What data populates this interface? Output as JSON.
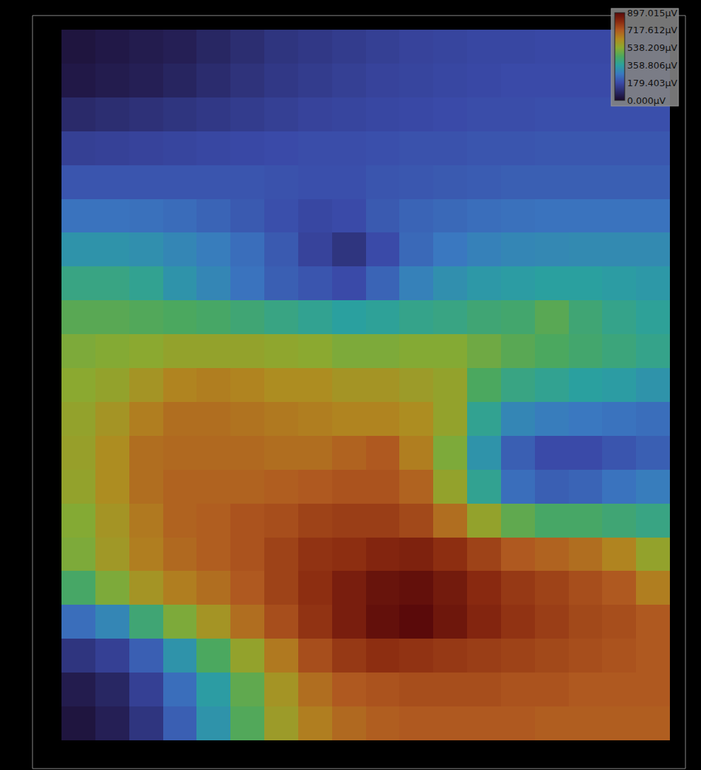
{
  "chart_data": {
    "type": "heatmap",
    "tick_labels": false,
    "cells": [
      [
        30,
        40,
        50,
        60,
        80,
        100,
        120,
        130,
        140,
        150,
        160,
        165,
        170,
        170,
        175,
        175,
        175,
        175
      ],
      [
        40,
        50,
        60,
        75,
        95,
        115,
        130,
        140,
        150,
        160,
        165,
        170,
        175,
        180,
        180,
        180,
        180,
        180
      ],
      [
        90,
        100,
        110,
        120,
        130,
        140,
        150,
        160,
        165,
        170,
        175,
        180,
        185,
        185,
        190,
        190,
        190,
        190
      ],
      [
        150,
        155,
        160,
        165,
        170,
        175,
        180,
        185,
        185,
        190,
        195,
        195,
        200,
        200,
        205,
        205,
        205,
        205
      ],
      [
        200,
        200,
        200,
        200,
        200,
        200,
        195,
        190,
        190,
        200,
        205,
        210,
        215,
        220,
        220,
        220,
        220,
        220
      ],
      [
        260,
        260,
        255,
        245,
        230,
        210,
        190,
        170,
        180,
        210,
        230,
        240,
        250,
        255,
        260,
        260,
        260,
        260
      ],
      [
        330,
        330,
        320,
        300,
        280,
        250,
        210,
        160,
        120,
        180,
        240,
        270,
        290,
        300,
        305,
        310,
        310,
        310
      ],
      [
        400,
        400,
        380,
        330,
        300,
        260,
        220,
        200,
        180,
        230,
        290,
        320,
        340,
        350,
        360,
        360,
        350,
        340
      ],
      [
        470,
        470,
        460,
        450,
        440,
        420,
        400,
        380,
        360,
        370,
        390,
        400,
        420,
        430,
        470,
        420,
        390,
        370
      ],
      [
        520,
        530,
        540,
        560,
        560,
        560,
        550,
        540,
        520,
        520,
        530,
        530,
        500,
        470,
        450,
        430,
        410,
        390
      ],
      [
        540,
        560,
        600,
        640,
        650,
        640,
        620,
        620,
        600,
        600,
        580,
        560,
        450,
        400,
        380,
        360,
        350,
        330
      ],
      [
        560,
        600,
        650,
        680,
        680,
        670,
        660,
        650,
        640,
        640,
        620,
        560,
        380,
        300,
        280,
        270,
        260,
        250
      ],
      [
        570,
        620,
        680,
        690,
        690,
        690,
        680,
        680,
        700,
        720,
        650,
        520,
        330,
        220,
        180,
        180,
        200,
        220
      ],
      [
        560,
        620,
        680,
        700,
        700,
        700,
        710,
        720,
        730,
        730,
        700,
        560,
        380,
        250,
        220,
        230,
        260,
        280
      ],
      [
        530,
        600,
        660,
        700,
        710,
        730,
        740,
        760,
        770,
        770,
        750,
        680,
        560,
        480,
        440,
        440,
        420,
        400
      ],
      [
        520,
        590,
        650,
        690,
        710,
        730,
        760,
        790,
        800,
        820,
        830,
        800,
        760,
        720,
        700,
        680,
        640,
        560
      ],
      [
        440,
        520,
        600,
        650,
        680,
        720,
        760,
        800,
        840,
        870,
        880,
        850,
        810,
        780,
        760,
        740,
        720,
        650
      ],
      [
        250,
        300,
        420,
        520,
        600,
        680,
        740,
        790,
        840,
        880,
        897,
        860,
        820,
        790,
        770,
        750,
        740,
        720
      ],
      [
        120,
        150,
        220,
        330,
        450,
        560,
        660,
        740,
        780,
        800,
        790,
        780,
        770,
        760,
        750,
        740,
        730,
        720
      ],
      [
        50,
        80,
        150,
        250,
        350,
        480,
        600,
        680,
        720,
        730,
        740,
        740,
        740,
        730,
        730,
        720,
        720,
        720
      ],
      [
        30,
        60,
        120,
        220,
        330,
        460,
        580,
        650,
        690,
        710,
        720,
        720,
        720,
        720,
        710,
        710,
        710,
        710
      ]
    ],
    "colorbar_range": [
      0,
      897.015
    ],
    "colorbar_ticks": [
      {
        "value": 897.015,
        "label": "897.015μV"
      },
      {
        "value": 717.612,
        "label": "717.612μV"
      },
      {
        "value": 538.209,
        "label": "538.209μV"
      },
      {
        "value": 358.806,
        "label": "358.806μV"
      },
      {
        "value": 179.403,
        "label": "179.403μV"
      },
      {
        "value": 0,
        "label": "0.000μV"
      }
    ]
  }
}
